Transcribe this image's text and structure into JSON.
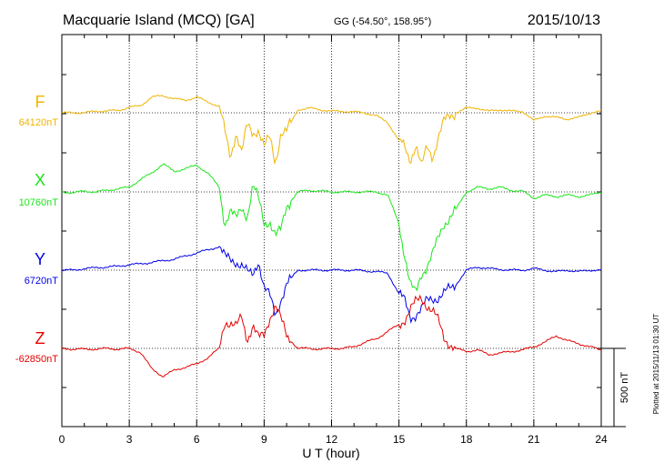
{
  "header": {
    "station": "Macquarie Island (MCQ)  [GA]",
    "coords": "GG (-54.50°, 158.95°)",
    "date": "2015/10/13"
  },
  "side_note": "Plotted at 2015/11/13 01:30 UT",
  "scale_bar_label": "500 nT",
  "chart_data": {
    "type": "line",
    "title": "Macquarie Island (MCQ)  [GA]",
    "xlabel": "U T (hour)",
    "ylabel": "",
    "xlim": [
      0,
      24
    ],
    "x_ticks": [
      "0",
      "3",
      "6",
      "9",
      "12",
      "15",
      "18",
      "21",
      "24"
    ],
    "grid": true,
    "x": [
      0,
      0.5,
      1,
      1.5,
      2,
      2.5,
      3,
      3.5,
      4,
      4.5,
      5,
      5.5,
      6,
      6.5,
      7,
      7.25,
      7.5,
      7.75,
      8,
      8.25,
      8.5,
      8.75,
      9,
      9.25,
      9.5,
      9.75,
      10,
      10.5,
      11,
      11.5,
      12,
      12.5,
      13,
      13.5,
      14,
      14.5,
      15,
      15.25,
      15.5,
      15.75,
      16,
      16.25,
      16.5,
      16.75,
      17,
      17.5,
      18,
      18.5,
      19,
      19.5,
      20,
      20.5,
      21,
      21.5,
      22,
      22.5,
      23,
      23.5,
      24
    ],
    "series": [
      {
        "name": "F",
        "baseline_label": "64120nT",
        "color": "#f0b400",
        "values": [
          0,
          0,
          0,
          10,
          12,
          15,
          35,
          45,
          100,
          110,
          90,
          80,
          100,
          70,
          40,
          -120,
          -280,
          -120,
          -260,
          -80,
          -130,
          -100,
          -220,
          -160,
          -320,
          -120,
          -120,
          20,
          30,
          20,
          10,
          10,
          5,
          0,
          -20,
          -60,
          -180,
          -220,
          -300,
          -200,
          -350,
          -220,
          -280,
          -150,
          -60,
          0,
          30,
          30,
          10,
          20,
          10,
          10,
          -50,
          -20,
          -30,
          -40,
          -30,
          0,
          10
        ]
      },
      {
        "name": "X",
        "baseline_label": "10760nT",
        "color": "#19e619",
        "values": [
          0,
          -5,
          5,
          0,
          10,
          20,
          30,
          80,
          120,
          180,
          130,
          150,
          170,
          120,
          30,
          -200,
          -120,
          -180,
          -100,
          -150,
          40,
          -50,
          -200,
          -180,
          -280,
          -250,
          -90,
          0,
          10,
          5,
          0,
          0,
          0,
          0,
          0,
          -20,
          -200,
          -400,
          -600,
          -650,
          -520,
          -470,
          -400,
          -300,
          -200,
          -120,
          0,
          30,
          20,
          30,
          10,
          5,
          -40,
          -20,
          -30,
          -20,
          -30,
          -20,
          0
        ]
      },
      {
        "name": "Y",
        "baseline_label": "6720nT",
        "color": "#0000e6",
        "values": [
          0,
          0,
          10,
          15,
          20,
          25,
          35,
          40,
          50,
          60,
          70,
          90,
          110,
          130,
          150,
          80,
          70,
          60,
          30,
          -20,
          -30,
          70,
          -110,
          -170,
          -290,
          -180,
          -90,
          0,
          0,
          0,
          0,
          0,
          0,
          -5,
          -10,
          -20,
          -150,
          -200,
          -300,
          -280,
          -250,
          -200,
          -180,
          -170,
          -150,
          -100,
          0,
          20,
          10,
          5,
          0,
          0,
          10,
          0,
          -10,
          0,
          -10,
          0,
          0
        ]
      },
      {
        "name": "Z",
        "baseline_label": "-62850nT",
        "color": "#e60000",
        "values": [
          0,
          -5,
          -5,
          -5,
          0,
          -5,
          0,
          -25,
          -130,
          -180,
          -140,
          -120,
          -100,
          -60,
          0,
          180,
          160,
          130,
          200,
          60,
          150,
          60,
          80,
          200,
          280,
          180,
          80,
          0,
          0,
          -5,
          0,
          0,
          10,
          40,
          60,
          110,
          150,
          190,
          250,
          290,
          320,
          280,
          240,
          170,
          70,
          0,
          -20,
          -10,
          -40,
          -30,
          -20,
          -10,
          10,
          40,
          80,
          50,
          30,
          10,
          -10
        ]
      }
    ]
  }
}
